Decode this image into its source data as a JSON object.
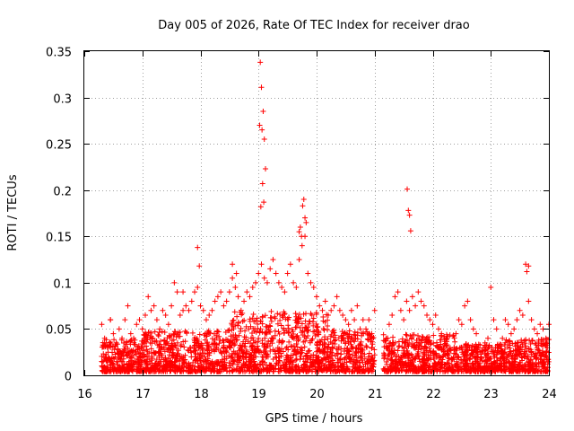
{
  "chart_data": {
    "type": "scatter",
    "title": "Day 005 of 2026, Rate Of TEC Index for receiver drao",
    "xlabel": "GPS time / hours",
    "ylabel": "ROTI / TECUs",
    "xlim": [
      16,
      24
    ],
    "ylim": [
      0,
      0.35
    ],
    "xticks": [
      16,
      17,
      18,
      19,
      20,
      21,
      22,
      23,
      24
    ],
    "xtick_labels": [
      "16",
      "17",
      "18",
      "19",
      "20",
      "21",
      "22",
      "23",
      "24"
    ],
    "yticks": [
      0,
      0.05,
      0.1,
      0.15,
      0.2,
      0.25,
      0.3,
      0.35
    ],
    "ytick_labels": [
      "0",
      "0.05",
      "0.1",
      "0.15",
      "0.2",
      "0.25",
      "0.3",
      "0.35"
    ],
    "grid": true,
    "marker": "+",
    "color": "#ff0000",
    "series": [
      {
        "name": "ROTI",
        "x": [
          16.3,
          16.35,
          16.4,
          16.45,
          16.5,
          16.55,
          16.6,
          16.65,
          16.7,
          16.75,
          16.8,
          16.85,
          16.9,
          16.95,
          17.0,
          17.05,
          17.1,
          17.15,
          17.2,
          17.25,
          17.3,
          17.35,
          17.4,
          17.45,
          17.5,
          17.55,
          17.6,
          17.65,
          17.7,
          17.75,
          17.8,
          17.85,
          17.9,
          17.95,
          18.0,
          18.05,
          18.1,
          18.15,
          18.2,
          18.25,
          18.3,
          18.35,
          18.4,
          18.45,
          18.5,
          18.55,
          18.6,
          18.65,
          18.7,
          18.75,
          18.8,
          18.85,
          18.9,
          18.95,
          19.0,
          19.05,
          19.1,
          19.15,
          19.2,
          19.25,
          19.3,
          19.35,
          19.4,
          19.45,
          19.5,
          19.55,
          19.6,
          19.65,
          19.7,
          19.75,
          19.8,
          19.85,
          19.9,
          19.95,
          20.0,
          20.05,
          20.1,
          20.15,
          20.2,
          20.25,
          20.3,
          20.35,
          20.4,
          20.45,
          20.5,
          20.55,
          20.6,
          20.65,
          20.7,
          20.75,
          20.8,
          20.85,
          20.9,
          20.95,
          21.0,
          21.2,
          21.25,
          21.3,
          21.35,
          21.4,
          21.45,
          21.5,
          21.55,
          21.6,
          21.65,
          21.7,
          21.75,
          21.8,
          21.85,
          21.9,
          21.95,
          22.0,
          22.05,
          22.1,
          22.15,
          22.2,
          22.25,
          22.4,
          22.45,
          22.5,
          22.55,
          22.6,
          22.65,
          22.7,
          22.75,
          22.9,
          22.95,
          23.0,
          23.05,
          23.1,
          23.2,
          23.25,
          23.3,
          23.35,
          23.4,
          23.45,
          23.5,
          23.55,
          23.6,
          23.65,
          23.7,
          23.75,
          23.8,
          23.85,
          23.9,
          23.95,
          24.0,
          19.02,
          19.03,
          19.05,
          19.06,
          19.08,
          19.1,
          19.12,
          19.07,
          19.04,
          19.09,
          19.76,
          19.78,
          19.8,
          19.72,
          19.7,
          19.74,
          19.82,
          21.56,
          21.58,
          21.6,
          21.62,
          17.95,
          17.98,
          18.55,
          18.62,
          23.65,
          23.62,
          16.45,
          17.7
        ],
        "y": [
          0.055,
          0.04,
          0.03,
          0.06,
          0.045,
          0.035,
          0.05,
          0.04,
          0.06,
          0.075,
          0.045,
          0.04,
          0.055,
          0.06,
          0.05,
          0.065,
          0.085,
          0.07,
          0.075,
          0.06,
          0.05,
          0.07,
          0.065,
          0.055,
          0.075,
          0.1,
          0.09,
          0.065,
          0.07,
          0.075,
          0.07,
          0.08,
          0.09,
          0.095,
          0.075,
          0.07,
          0.06,
          0.065,
          0.07,
          0.08,
          0.085,
          0.09,
          0.075,
          0.08,
          0.09,
          0.105,
          0.095,
          0.085,
          0.07,
          0.08,
          0.09,
          0.085,
          0.095,
          0.1,
          0.11,
          0.12,
          0.105,
          0.1,
          0.115,
          0.125,
          0.11,
          0.1,
          0.095,
          0.09,
          0.11,
          0.12,
          0.1,
          0.095,
          0.125,
          0.14,
          0.15,
          0.11,
          0.1,
          0.095,
          0.085,
          0.075,
          0.07,
          0.08,
          0.065,
          0.07,
          0.075,
          0.085,
          0.07,
          0.065,
          0.06,
          0.055,
          0.07,
          0.06,
          0.075,
          0.05,
          0.06,
          0.05,
          0.06,
          0.045,
          0.07,
          0.04,
          0.055,
          0.065,
          0.085,
          0.09,
          0.07,
          0.06,
          0.08,
          0.07,
          0.085,
          0.075,
          0.09,
          0.08,
          0.075,
          0.065,
          0.06,
          0.055,
          0.065,
          0.05,
          0.045,
          0.04,
          0.04,
          0.045,
          0.06,
          0.055,
          0.075,
          0.08,
          0.06,
          0.05,
          0.045,
          0.035,
          0.04,
          0.095,
          0.06,
          0.05,
          0.04,
          0.06,
          0.055,
          0.045,
          0.05,
          0.06,
          0.07,
          0.065,
          0.12,
          0.08,
          0.06,
          0.05,
          0.045,
          0.055,
          0.05,
          0.04,
          0.055,
          0.27,
          0.338,
          0.311,
          0.265,
          0.285,
          0.255,
          0.223,
          0.207,
          0.182,
          0.187,
          0.183,
          0.19,
          0.17,
          0.16,
          0.155,
          0.15,
          0.165,
          0.201,
          0.178,
          0.173,
          0.156,
          0.138,
          0.118,
          0.12,
          0.11,
          0.118,
          0.112,
          0.06,
          0.09
        ]
      }
    ]
  }
}
